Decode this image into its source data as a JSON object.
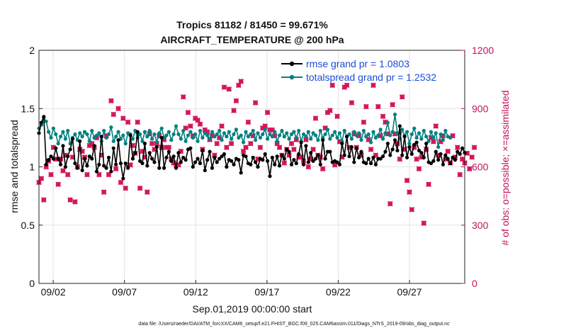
{
  "chart_data": {
    "type": "line",
    "title_line1": "Tropics 81182 / 81450 = 99.671%",
    "title_line2": "AIRCRAFT_TEMPERATURE @ 200 hPa",
    "xlabel": "Sep.01,2019 00:00:00 start",
    "ylabel_left": "rmse and totalspread",
    "ylabel_right": "# of obs: o=possible; ×=assimilated",
    "footer": "data file: /Users/raeder/DAI/ATM_forcXX/CAM6_setup/f.e21.FHIST_BGC.f09_025.CAM6assim.011/Diags_NTrS_2019-09/obs_diag_output.nc",
    "x_ticks": [
      {
        "label": "09/02",
        "day": 2
      },
      {
        "label": "09/07",
        "day": 7
      },
      {
        "label": "09/12",
        "day": 12
      },
      {
        "label": "09/17",
        "day": 17
      },
      {
        "label": "09/22",
        "day": 22
      },
      {
        "label": "09/27",
        "day": 27
      }
    ],
    "x_range_days": [
      1,
      30.875
    ],
    "ylim_left": [
      0,
      2
    ],
    "yticks_left": [
      "0",
      "0.5",
      "1",
      "1.5",
      "2"
    ],
    "ylim_right": [
      0,
      1200
    ],
    "yticks_right": [
      "0",
      "300",
      "600",
      "900",
      "1200"
    ],
    "colors": {
      "rmse": "#000000",
      "spread": "#008080",
      "obs": "#d4145a",
      "legend_text": "#1a4dd8"
    },
    "series": [
      {
        "name": "rmse grand pr = 1.0803",
        "axis": "left",
        "values": [
          1.29,
          1.38,
          1.43,
          1.02,
          1.06,
          1.09,
          1.07,
          1.16,
          1.07,
          1.02,
          1.18,
          1.0,
          1.09,
          1.15,
          1.24,
          1.03,
          0.99,
          1.22,
          0.97,
          1.07,
          1.01,
          1.09,
          1.07,
          1.18,
          0.96,
          1.02,
          1.26,
          1.01,
          0.99,
          1.08,
          0.96,
          1.16,
          1.02,
          1.23,
          1.03,
          0.9,
          1.03,
          0.99,
          1.27,
          1.07,
          1.12,
          1.3,
          1.05,
          1.03,
          1.2,
          1.01,
          1.12,
          1.07,
          1.04,
          1.17,
          0.99,
          1.25,
          0.99,
          1.08,
          1.13,
          1.05,
          1.09,
          0.99,
          1.12,
          1.04,
          1.08,
          1.06,
          1.15,
          1.16,
          1.0,
          1.04,
          1.07,
          1.03,
          1.14,
          0.97,
          1.06,
          1.13,
          0.99,
          1.08,
          1.04,
          1.07,
          1.09,
          1.11,
          1.0,
          1.06,
          1.05,
          1.02,
          1.07,
          1.06,
          0.95,
          1.1,
          1.09,
          1.03,
          1.02,
          1.08,
          1.04,
          1.0,
          1.07,
          1.06,
          1.11,
          1.05,
          0.92,
          1.08,
          1.02,
          1.09,
          1.01,
          1.1,
          1.07,
          1.15,
          1.13,
          1.02,
          1.06,
          1.03,
          1.11,
          1.21,
          1.02,
          1.18,
          1.04,
          1.12,
          1.05,
          1.07,
          1.1,
          1.02,
          1.23,
          1.07,
          1.13,
          1.13,
          1.04,
          1.05,
          1.04,
          1.02,
          1.2,
          1.1,
          1.26,
          1.09,
          1.17,
          1.04,
          1.16,
          1.08,
          1.13,
          1.04,
          1.03,
          1.07,
          1.03,
          1.08,
          1.02,
          1.07,
          1.07,
          1.09,
          1.13,
          1.2,
          1.1,
          1.15,
          1.23,
          1.14,
          1.35,
          1.1,
          1.26,
          1.08,
          1.17,
          1.11,
          1.19,
          1.21,
          1.14,
          1.12,
          1.08,
          1.2,
          1.04,
          1.03,
          1.05,
          1.13,
          1.06,
          1.11,
          1.02,
          1.1,
          1.07,
          1.03,
          1.08,
          1.06,
          1.13,
          1.11,
          1.16,
          1.12
        ]
      },
      {
        "name": "totalspread grand pr = 1.2532",
        "axis": "left",
        "values": [
          1.33,
          1.36,
          1.42,
          1.39,
          1.3,
          1.25,
          1.33,
          1.28,
          1.2,
          1.26,
          1.3,
          1.24,
          1.31,
          1.2,
          1.25,
          1.28,
          1.23,
          1.29,
          1.26,
          1.3,
          1.28,
          1.22,
          1.31,
          1.25,
          1.27,
          1.29,
          1.22,
          1.31,
          1.25,
          1.28,
          1.34,
          1.22,
          1.26,
          1.3,
          1.24,
          1.27,
          1.2,
          1.29,
          1.28,
          1.24,
          1.31,
          1.25,
          1.28,
          1.22,
          1.3,
          1.26,
          1.31,
          1.24,
          1.28,
          1.21,
          1.29,
          1.33,
          1.25,
          1.27,
          1.3,
          1.23,
          1.28,
          1.35,
          1.28,
          1.24,
          1.31,
          1.22,
          1.27,
          1.3,
          1.25,
          1.28,
          1.22,
          1.31,
          1.25,
          1.29,
          1.27,
          1.24,
          1.3,
          1.26,
          1.28,
          1.31,
          1.23,
          1.29,
          1.26,
          1.3,
          1.24,
          1.28,
          1.32,
          1.25,
          1.27,
          1.21,
          1.3,
          1.26,
          1.28,
          1.31,
          1.23,
          1.29,
          1.25,
          1.28,
          1.32,
          1.24,
          1.28,
          1.26,
          1.3,
          1.22,
          1.27,
          1.31,
          1.26,
          1.29,
          1.24,
          1.28,
          1.3,
          1.25,
          1.31,
          1.22,
          1.28,
          1.26,
          1.3,
          1.24,
          1.29,
          1.27,
          1.23,
          1.31,
          1.25,
          1.28,
          1.32,
          1.24,
          1.27,
          1.3,
          1.25,
          1.29,
          1.22,
          1.31,
          1.26,
          1.28,
          1.24,
          1.3,
          1.27,
          1.29,
          1.23,
          1.31,
          1.26,
          1.28,
          1.21,
          1.3,
          1.25,
          1.27,
          1.32,
          1.24,
          1.29,
          1.38,
          1.27,
          1.3,
          1.45,
          1.29,
          1.24,
          1.32,
          1.27,
          1.3,
          1.2,
          1.28,
          1.33,
          1.25,
          1.29,
          1.24,
          1.31,
          1.26,
          1.22,
          1.3,
          1.25,
          1.29,
          1.17,
          1.28,
          1.23,
          1.31,
          1.26,
          1.25
        ]
      },
      {
        "name": "obs possible",
        "marker": "o",
        "axis": "right",
        "values": [
          520,
          540,
          430,
          600,
          630,
          560,
          700,
          640,
          510,
          640,
          580,
          660,
          560,
          430,
          650,
          420,
          600,
          690,
          680,
          650,
          560,
          710,
          720,
          700,
          750,
          560,
          660,
          470,
          760,
          560,
          940,
          870,
          590,
          900,
          520,
          850,
          490,
          830,
          610,
          710,
          670,
          830,
          490,
          680,
          650,
          470,
          770,
          720,
          690,
          720,
          760,
          700,
          740,
          700,
          700,
          640,
          620,
          610,
          610,
          680,
          960,
          800,
          880,
          810,
          760,
          850,
          840,
          820,
          690,
          790,
          780,
          740,
          760,
          660,
          720,
          750,
          810,
          1010,
          700,
          1000,
          720,
          890,
          940,
          1020,
          1040,
          680,
          700,
          830,
          720,
          760,
          930,
          640,
          700,
          800,
          810,
          880,
          790,
          790,
          760,
          720,
          700,
          660,
          620,
          690,
          660,
          720,
          690,
          740,
          650,
          650,
          630,
          740,
          600,
          640,
          690,
          850,
          660,
          650,
          590,
          800,
          880,
          890,
          1020,
          610,
          860,
          730,
          650,
          1010,
          1020,
          700,
          930,
          770,
          700,
          760,
          660,
          830,
          910,
          740,
          690,
          1020,
          660,
          910,
          760,
          860,
          830,
          770,
          410,
          920,
          770,
          720,
          640,
          960,
          690,
          530,
          470,
          380,
          700,
          640,
          590,
          650,
          310,
          690,
          510,
          750,
          730,
          810,
          660,
          730,
          760,
          640,
          680,
          620,
          760,
          650,
          700,
          560,
          640,
          620,
          670,
          590,
          650,
          700
        ]
      },
      {
        "name": "obs assimilated",
        "marker": "x",
        "axis": "right",
        "values": [
          520,
          540,
          430,
          600,
          630,
          560,
          700,
          640,
          510,
          640,
          580,
          660,
          560,
          430,
          650,
          420,
          600,
          690,
          680,
          650,
          560,
          710,
          720,
          700,
          750,
          560,
          660,
          470,
          760,
          560,
          940,
          870,
          590,
          900,
          520,
          850,
          490,
          830,
          610,
          710,
          670,
          830,
          490,
          680,
          650,
          470,
          770,
          720,
          690,
          720,
          760,
          700,
          740,
          700,
          700,
          640,
          620,
          610,
          610,
          680,
          960,
          800,
          880,
          810,
          760,
          850,
          840,
          820,
          690,
          790,
          780,
          740,
          760,
          660,
          720,
          750,
          810,
          1010,
          700,
          1000,
          720,
          890,
          940,
          1020,
          1040,
          680,
          700,
          830,
          720,
          760,
          930,
          640,
          700,
          800,
          810,
          880,
          790,
          790,
          760,
          720,
          700,
          660,
          620,
          690,
          660,
          720,
          690,
          740,
          650,
          650,
          630,
          740,
          600,
          640,
          690,
          850,
          660,
          650,
          590,
          800,
          880,
          890,
          1020,
          610,
          860,
          730,
          650,
          1010,
          1020,
          700,
          930,
          770,
          700,
          760,
          660,
          830,
          910,
          740,
          690,
          1020,
          660,
          910,
          760,
          860,
          830,
          770,
          410,
          920,
          770,
          720,
          640,
          960,
          690,
          530,
          470,
          380,
          700,
          640,
          590,
          650,
          310,
          690,
          510,
          750,
          730,
          810,
          660,
          730,
          760,
          640,
          680,
          620,
          760,
          650,
          700,
          560,
          640,
          620,
          670,
          590,
          650,
          700
        ]
      }
    ],
    "legend": {
      "placement": "top-right",
      "entries": [
        "rmse grand pr = 1.0803",
        "totalspread grand pr = 1.2532"
      ]
    },
    "grid": true
  }
}
